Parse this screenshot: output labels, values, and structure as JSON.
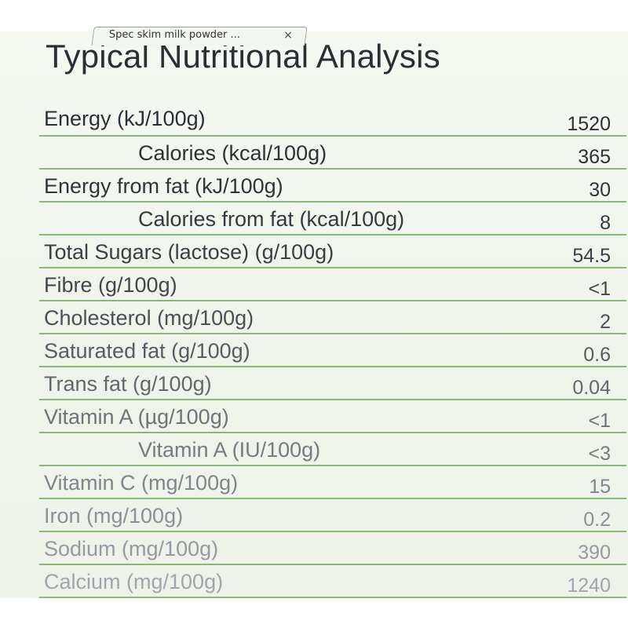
{
  "tab": {
    "title": "Spec skim milk powder ...",
    "close": "×"
  },
  "page": {
    "title": "Typical Nutritional Analysis"
  },
  "table": {
    "rows": [
      {
        "label": "Energy (kJ/100g)",
        "value": "1520",
        "indent": false,
        "color": "#2b3038"
      },
      {
        "label": "Calories (kcal/100g)",
        "value": "365",
        "indent": true,
        "color": "#2d3239"
      },
      {
        "label": "Energy from fat (kJ/100g)",
        "value": "30",
        "indent": false,
        "color": "#30353c"
      },
      {
        "label": "Calories from fat (kcal/100g)",
        "value": "8",
        "indent": true,
        "color": "#353a41"
      },
      {
        "label": "Total Sugars (lactose) (g/100g)",
        "value": "54.5",
        "indent": false,
        "color": "#3a3f46"
      },
      {
        "label": "Fibre (g/100g)",
        "value": "<1",
        "indent": false,
        "color": "#42474e"
      },
      {
        "label": "Cholesterol (mg/100g)",
        "value": "2",
        "indent": false,
        "color": "#4a5058"
      },
      {
        "label": "Saturated fat (g/100g)",
        "value": "0.6",
        "indent": false,
        "color": "#565c63"
      },
      {
        "label": "Trans fat (g/100g)",
        "value": "0.04",
        "indent": false,
        "color": "#62686f"
      },
      {
        "label": "Vitamin A (µg/100g)",
        "value": "<1",
        "indent": false,
        "color": "#6e747b"
      },
      {
        "label": "Vitamin A (IU/100g)",
        "value": "<3",
        "indent": true,
        "color": "#767c83"
      },
      {
        "label": "Vitamin C (mg/100g)",
        "value": "15",
        "indent": false,
        "color": "#80868d"
      },
      {
        "label": "Iron (mg/100g)",
        "value": "0.2",
        "indent": false,
        "color": "#8a9097"
      },
      {
        "label": "Sodium (mg/100g)",
        "value": "390",
        "indent": false,
        "color": "#959ba2"
      },
      {
        "label": "Calcium (mg/100g)",
        "value": "1240",
        "indent": false,
        "color": "#a0a6ad"
      }
    ]
  }
}
